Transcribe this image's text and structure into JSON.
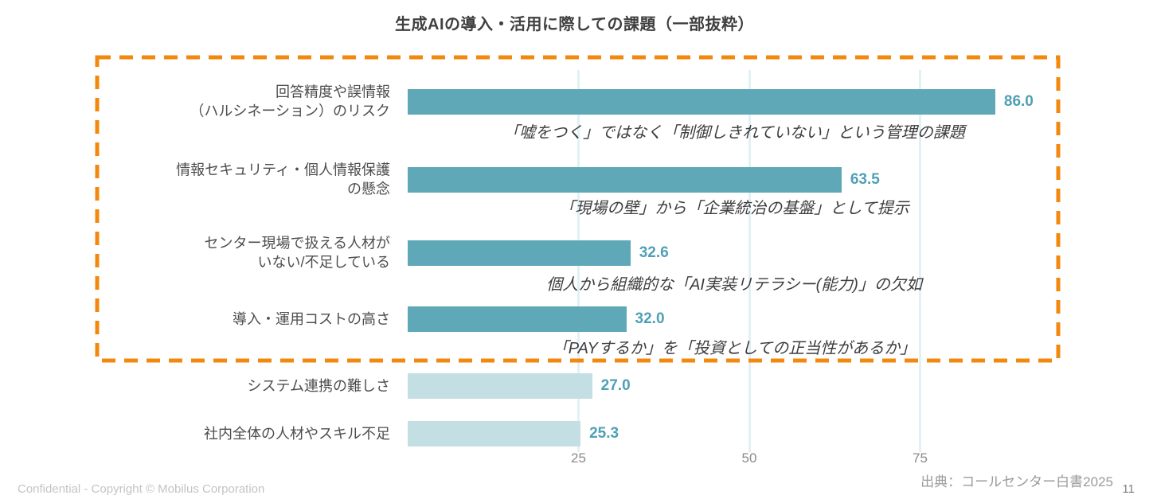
{
  "title": "生成AIの導入・活用に際しての課題（一部抜粋）",
  "chart_data": {
    "type": "bar",
    "orientation": "horizontal",
    "title": "生成AIの導入・活用に際しての課題（一部抜粋）",
    "categories": [
      "回答精度や誤情報\n（ハルシネーション）のリスク",
      "情報セキュリティ・個人情報保護\nの懸念",
      "センター現場で扱える人材が\nいない/不足している",
      "導入・運用コストの高さ",
      "システム連携の難しさ",
      "社内全体の人材やスキル不足"
    ],
    "values": [
      86.0,
      63.5,
      32.6,
      32.0,
      27.0,
      25.3
    ],
    "value_labels": [
      "86.0",
      "63.5",
      "32.6",
      "32.0",
      "27.0",
      "25.3"
    ],
    "annotations": [
      "「嘘をつく」ではなく「制御しきれていない」という管理の課題",
      "「現場の壁」から「企業統治の基盤」として提示",
      "個人から組織的な「AI実装リテラシー(能力)」の欠如",
      "「PAYするか」を「投資としての正当性があるか」",
      "",
      ""
    ],
    "highlighted": [
      true,
      true,
      true,
      true,
      false,
      false
    ],
    "x_ticks": [
      "25",
      "50",
      "75"
    ],
    "xlim": [
      0,
      95
    ],
    "grid": "vertical-light",
    "legend": "none",
    "highlight_note": "top four bars enclosed in orange dashed box",
    "colors": {
      "highlight_bar": "#5fa8b8",
      "normal_bar": "#c3dfe4",
      "value_label": "#4fa0b5",
      "highlight_box": "#f2880e",
      "gridline": "#e2f1f4",
      "title_text": "#404040",
      "category_text": "#4d4d4d",
      "annotation_text": "#3d3d3d"
    }
  },
  "footer": {
    "confidential": "Confidential - Copyright © Mobilus Corporation",
    "source": "出典：コールセンター白書2025",
    "page_number": "11"
  }
}
